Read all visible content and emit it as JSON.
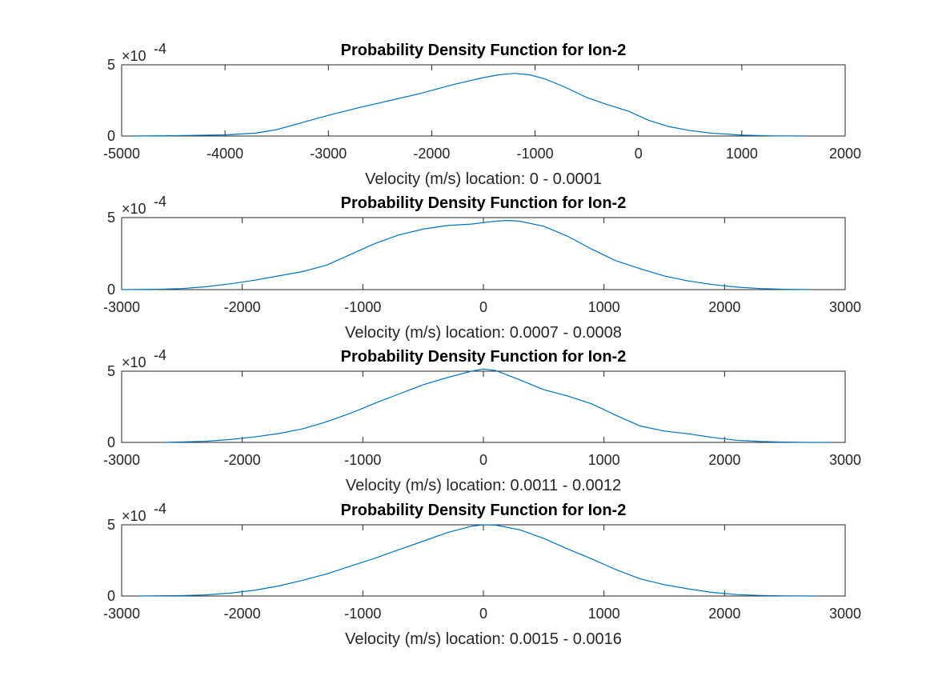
{
  "figure": {
    "background": "#ffffff",
    "line_color": "#0072bd",
    "axis_color": "#262626"
  },
  "chart_data": [
    {
      "type": "line",
      "title": "Probability Density Function for Ion-2",
      "xlabel": "Velocity (m/s) location: 0 - 0.0001",
      "ylabel": "",
      "y_multiplier_label": "×10",
      "y_multiplier_exponent": "-4",
      "xlim": [
        -5000,
        2000
      ],
      "ylim": [
        0,
        5
      ],
      "xticks": [
        -5000,
        -4000,
        -3000,
        -2000,
        -1000,
        0,
        1000,
        2000
      ],
      "yticks": [
        0,
        5
      ],
      "x": [
        -4900,
        -4500,
        -4000,
        -3700,
        -3500,
        -3300,
        -3000,
        -2700,
        -2400,
        -2100,
        -1800,
        -1500,
        -1350,
        -1200,
        -1050,
        -900,
        -700,
        -500,
        -300,
        -100,
        100,
        300,
        500,
        700,
        1000,
        1300,
        1600
      ],
      "y": [
        0.0,
        0.02,
        0.08,
        0.2,
        0.45,
        0.85,
        1.45,
        2.0,
        2.5,
        3.0,
        3.6,
        4.1,
        4.3,
        4.4,
        4.3,
        4.0,
        3.4,
        2.7,
        2.2,
        1.75,
        1.1,
        0.65,
        0.38,
        0.2,
        0.06,
        0.01,
        0.0
      ]
    },
    {
      "type": "line",
      "title": "Probability Density Function for Ion-2",
      "xlabel": "Velocity (m/s) location: 0.0007 - 0.0008",
      "ylabel": "",
      "y_multiplier_label": "×10",
      "y_multiplier_exponent": "-4",
      "xlim": [
        -3000,
        3000
      ],
      "ylim": [
        0,
        5
      ],
      "xticks": [
        -3000,
        -2000,
        -1000,
        0,
        1000,
        2000,
        3000
      ],
      "yticks": [
        0,
        5
      ],
      "x": [
        -3000,
        -2700,
        -2500,
        -2300,
        -2100,
        -1900,
        -1700,
        -1500,
        -1300,
        -1100,
        -900,
        -700,
        -500,
        -300,
        -100,
        0,
        100,
        200,
        300,
        500,
        700,
        900,
        1100,
        1300,
        1500,
        1700,
        1900,
        2100,
        2300,
        2500,
        2700
      ],
      "y": [
        0.0,
        0.02,
        0.07,
        0.2,
        0.4,
        0.65,
        0.95,
        1.25,
        1.7,
        2.45,
        3.2,
        3.8,
        4.2,
        4.45,
        4.55,
        4.65,
        4.75,
        4.8,
        4.75,
        4.4,
        3.7,
        2.8,
        2.0,
        1.45,
        0.95,
        0.6,
        0.35,
        0.17,
        0.07,
        0.02,
        0.0
      ]
    },
    {
      "type": "line",
      "title": "Probability Density Function for Ion-2",
      "xlabel": "Velocity (m/s) location: 0.0011 - 0.0012",
      "ylabel": "",
      "y_multiplier_label": "×10",
      "y_multiplier_exponent": "-4",
      "xlim": [
        -3000,
        3000
      ],
      "ylim": [
        0,
        5
      ],
      "xticks": [
        -3000,
        -2000,
        -1000,
        0,
        1000,
        2000,
        3000
      ],
      "yticks": [
        0,
        5
      ],
      "x": [
        -2650,
        -2300,
        -2100,
        -1900,
        -1700,
        -1500,
        -1300,
        -1100,
        -900,
        -700,
        -500,
        -300,
        -100,
        0,
        100,
        300,
        500,
        700,
        900,
        1100,
        1300,
        1500,
        1700,
        1900,
        2100,
        2300,
        2500,
        2700,
        2880
      ],
      "y": [
        0.0,
        0.08,
        0.2,
        0.38,
        0.62,
        0.95,
        1.45,
        2.05,
        2.75,
        3.4,
        4.05,
        4.55,
        5.0,
        5.15,
        5.05,
        4.4,
        3.7,
        3.25,
        2.7,
        1.9,
        1.15,
        0.8,
        0.6,
        0.35,
        0.15,
        0.06,
        0.02,
        0.0,
        0.0
      ]
    },
    {
      "type": "line",
      "title": "Probability Density Function for Ion-2",
      "xlabel": "Velocity (m/s) location: 0.0015 - 0.0016",
      "ylabel": "",
      "y_multiplier_label": "×10",
      "y_multiplier_exponent": "-4",
      "xlim": [
        -3000,
        3000
      ],
      "ylim": [
        0,
        5
      ],
      "xticks": [
        -3000,
        -2000,
        -1000,
        0,
        1000,
        2000,
        3000
      ],
      "yticks": [
        0,
        5
      ],
      "x": [
        -2870,
        -2500,
        -2300,
        -2100,
        -1900,
        -1700,
        -1500,
        -1300,
        -1100,
        -900,
        -700,
        -500,
        -300,
        -100,
        0,
        100,
        300,
        500,
        700,
        900,
        1100,
        1300,
        1500,
        1700,
        1900,
        2100,
        2300,
        2500,
        2750
      ],
      "y": [
        0.0,
        0.03,
        0.08,
        0.2,
        0.4,
        0.7,
        1.1,
        1.55,
        2.1,
        2.65,
        3.25,
        3.85,
        4.45,
        4.9,
        5.0,
        4.98,
        4.65,
        4.05,
        3.3,
        2.6,
        1.85,
        1.2,
        0.8,
        0.5,
        0.25,
        0.1,
        0.04,
        0.01,
        0.0
      ]
    }
  ]
}
